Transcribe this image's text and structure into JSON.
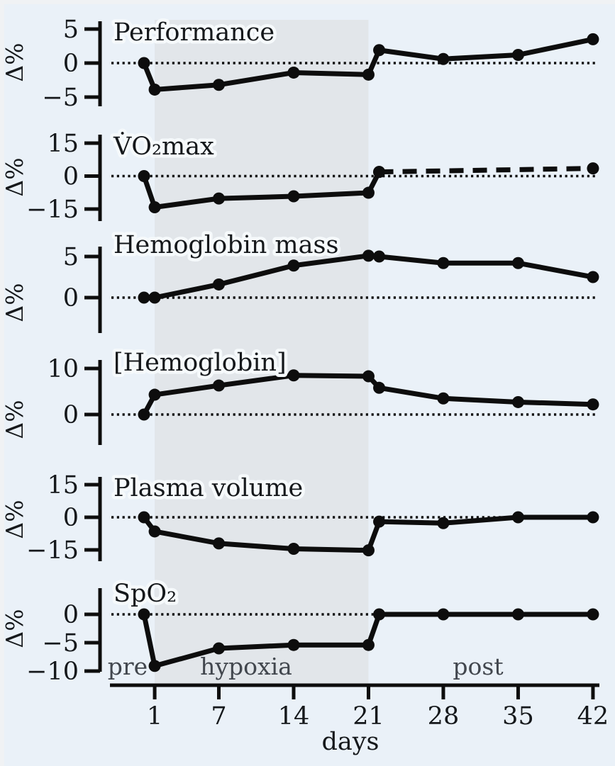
{
  "figure": {
    "xlabel": "days",
    "ylabel": "Δ%",
    "x_ticks": [
      1,
      7,
      14,
      21,
      28,
      35,
      42
    ],
    "phase_labels": [
      {
        "label": "pre"
      },
      {
        "label": "hypoxia"
      },
      {
        "label": "post"
      }
    ],
    "hypoxia_band": {
      "start_day": 1,
      "end_day": 21
    },
    "colors": {
      "background": "#eaf1f8",
      "band": "#e2e6ea",
      "line": "#0d0d0d",
      "text": "#15181b",
      "phase_text": "#42474e",
      "halo": "#f6fafc"
    }
  },
  "chart_data": [
    {
      "type": "line",
      "title": "Performance",
      "ylabel": "Δ%",
      "yticks": [
        5,
        0,
        -5
      ],
      "ylim": [
        -6.3,
        6.2
      ],
      "x_unit": "days",
      "series": [
        {
          "name": "performance",
          "style": "solid",
          "points": [
            [
              0,
              0
            ],
            [
              1,
              -3.9
            ],
            [
              7,
              -3.2
            ],
            [
              14,
              -1.4
            ],
            [
              21,
              -1.7
            ],
            [
              22,
              1.9
            ],
            [
              28,
              0.6
            ],
            [
              35,
              1.2
            ],
            [
              42,
              3.5
            ]
          ]
        }
      ]
    },
    {
      "type": "line",
      "title": "V̇O₂max",
      "ylabel": "Δ%",
      "yticks": [
        15,
        0,
        -15
      ],
      "ylim": [
        -20.5,
        18.9
      ],
      "x_unit": "days",
      "series": [
        {
          "name": "vo2max-measured",
          "style": "solid",
          "points": [
            [
              0,
              0
            ],
            [
              1,
              -14.2
            ],
            [
              7,
              -10.2
            ],
            [
              14,
              -9.2
            ],
            [
              21,
              -7.6
            ],
            [
              22,
              1.9
            ]
          ]
        },
        {
          "name": "vo2max-extrapolated",
          "style": "dashed",
          "points": [
            [
              22,
              1.9
            ],
            [
              42,
              3.5
            ]
          ]
        }
      ]
    },
    {
      "type": "line",
      "title": "Hemoglobin mass",
      "ylabel": "Δ%",
      "yticks": [
        5,
        0
      ],
      "ylim": [
        -4.3,
        6.2
      ],
      "x_unit": "days",
      "series": [
        {
          "name": "hemoglobin-mass",
          "style": "solid",
          "points": [
            [
              0,
              0
            ],
            [
              1,
              0
            ],
            [
              7,
              1.6
            ],
            [
              14,
              3.9
            ],
            [
              21,
              5.1
            ],
            [
              22,
              5.0
            ],
            [
              28,
              4.2
            ],
            [
              35,
              4.2
            ],
            [
              42,
              2.5
            ]
          ]
        }
      ]
    },
    {
      "type": "line",
      "title": "[Hemoglobin]",
      "ylabel": "Δ%",
      "yticks": [
        10,
        0
      ],
      "ylim": [
        -6.6,
        11.8
      ],
      "x_unit": "days",
      "series": [
        {
          "name": "hemoglobin-concentration",
          "style": "solid",
          "points": [
            [
              0,
              0
            ],
            [
              1,
              4.3
            ],
            [
              7,
              6.3
            ],
            [
              14,
              8.5
            ],
            [
              21,
              8.3
            ],
            [
              22,
              5.8
            ],
            [
              28,
              3.5
            ],
            [
              35,
              2.7
            ],
            [
              42,
              2.2
            ]
          ]
        }
      ]
    },
    {
      "type": "line",
      "title": "Plasma volume",
      "ylabel": "Δ%",
      "yticks": [
        15,
        0,
        -15
      ],
      "ylim": [
        -20.2,
        18.6
      ],
      "x_unit": "days",
      "series": [
        {
          "name": "plasma-volume",
          "style": "solid",
          "points": [
            [
              0,
              0
            ],
            [
              1,
              -6.5
            ],
            [
              7,
              -12
            ],
            [
              14,
              -14.5
            ],
            [
              21,
              -15.2
            ],
            [
              22,
              -2
            ],
            [
              28,
              -2.7
            ],
            [
              35,
              0
            ],
            [
              42,
              0
            ]
          ]
        }
      ]
    },
    {
      "type": "line",
      "title": "SpO₂",
      "ylabel": "Δ%",
      "yticks": [
        0,
        -5,
        -10
      ],
      "ylim": [
        -10.2,
        4.6
      ],
      "x_unit": "days",
      "series": [
        {
          "name": "spo2",
          "style": "solid",
          "points": [
            [
              0,
              0
            ],
            [
              1,
              -9.1
            ],
            [
              7,
              -6.0
            ],
            [
              14,
              -5.4
            ],
            [
              21,
              -5.4
            ],
            [
              22,
              0
            ],
            [
              28,
              0
            ],
            [
              35,
              0
            ],
            [
              42,
              0
            ]
          ]
        }
      ]
    }
  ]
}
